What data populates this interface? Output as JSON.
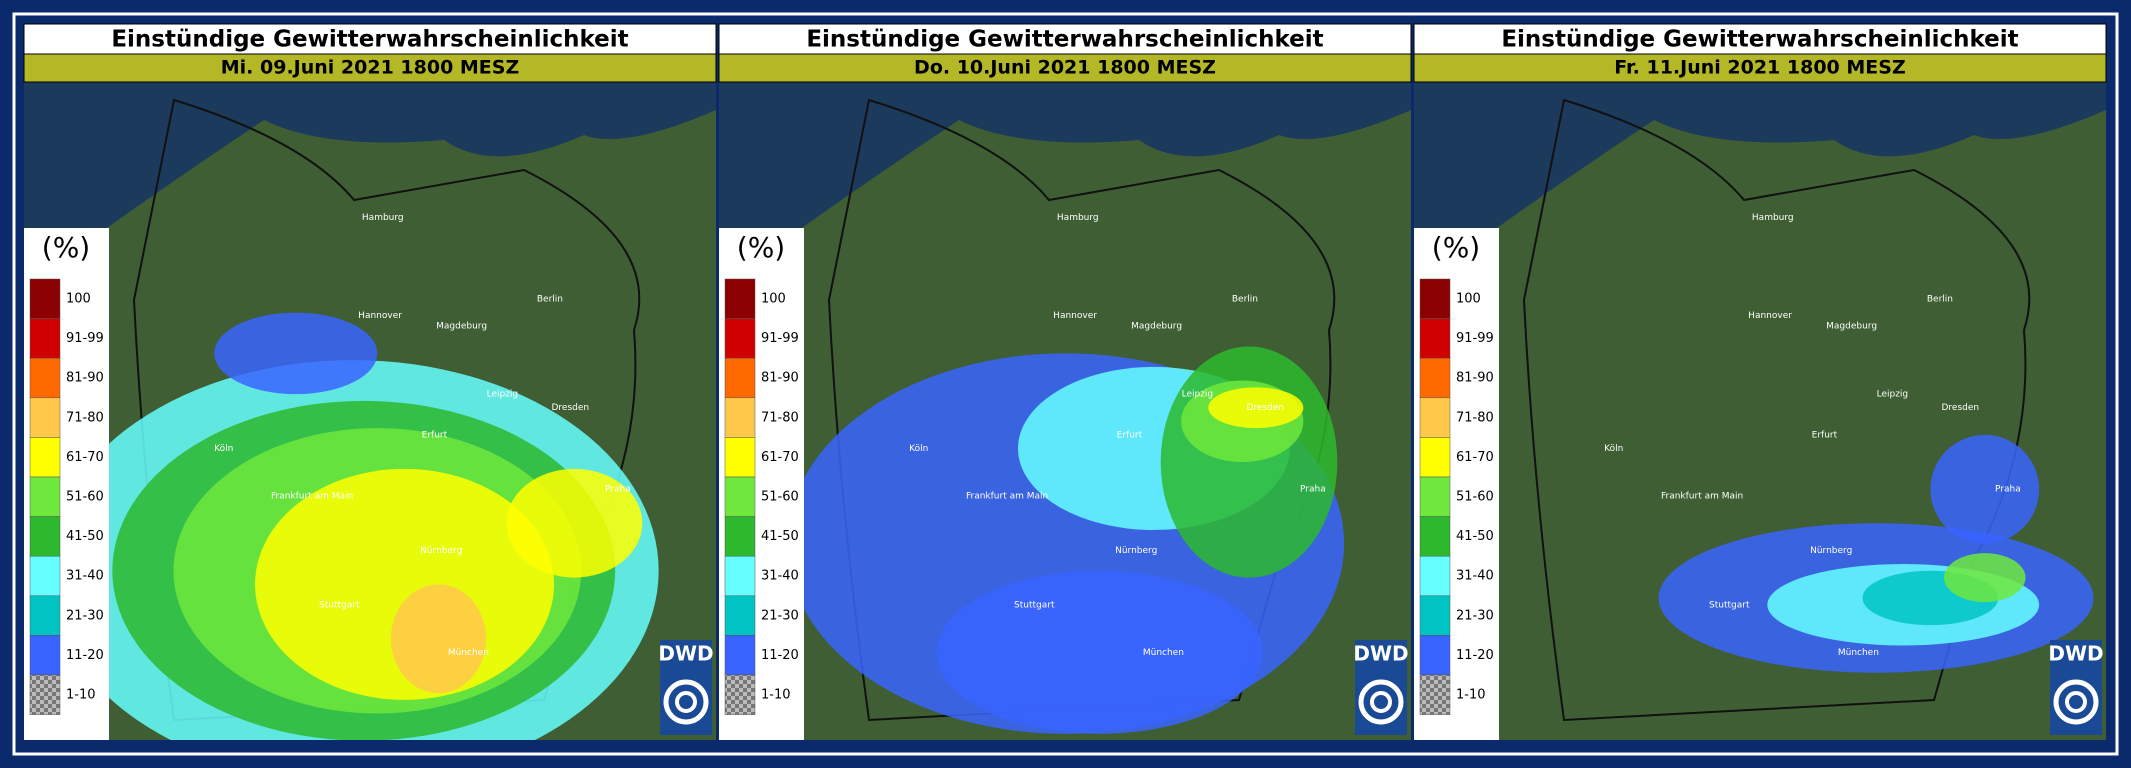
{
  "panels": [
    {
      "title": "Einstündige Gewitterwahrscheinlichkeit",
      "subtitle": "Mi. 09.Juni 2021 1800 MESZ"
    },
    {
      "title": "Einstündige Gewitterwahrscheinlichkeit",
      "subtitle": "Do. 10.Juni 2021 1800 MESZ"
    },
    {
      "title": "Einstündige Gewitterwahrscheinlichkeit",
      "subtitle": "Fr. 11.Juni 2021 1800 MESZ"
    }
  ],
  "legend": {
    "unit": "(%)",
    "items": [
      {
        "label": "100",
        "color": "#8b0000"
      },
      {
        "label": "91-99",
        "color": "#d10000"
      },
      {
        "label": "81-90",
        "color": "#ff6a00"
      },
      {
        "label": "71-80",
        "color": "#ffc84a"
      },
      {
        "label": "61-70",
        "color": "#ffff00"
      },
      {
        "label": "51-60",
        "color": "#6ee83c"
      },
      {
        "label": "41-50",
        "color": "#2db92d"
      },
      {
        "label": "31-40",
        "color": "#66ffff"
      },
      {
        "label": "21-30",
        "color": "#00c4c4"
      },
      {
        "label": "11-20",
        "color": "#3a64ff"
      },
      {
        "label": "1-10",
        "color": "#9a9a9a"
      }
    ]
  },
  "logo": "DWD",
  "map_labels": [
    "Hamburg",
    "Berlin",
    "Hannover",
    "Magdeburg",
    "Dresden",
    "Leipzig",
    "Erfurt",
    "Köln",
    "Frankfurt am Main",
    "Nürnberg",
    "Stuttgart",
    "München",
    "Praha"
  ]
}
